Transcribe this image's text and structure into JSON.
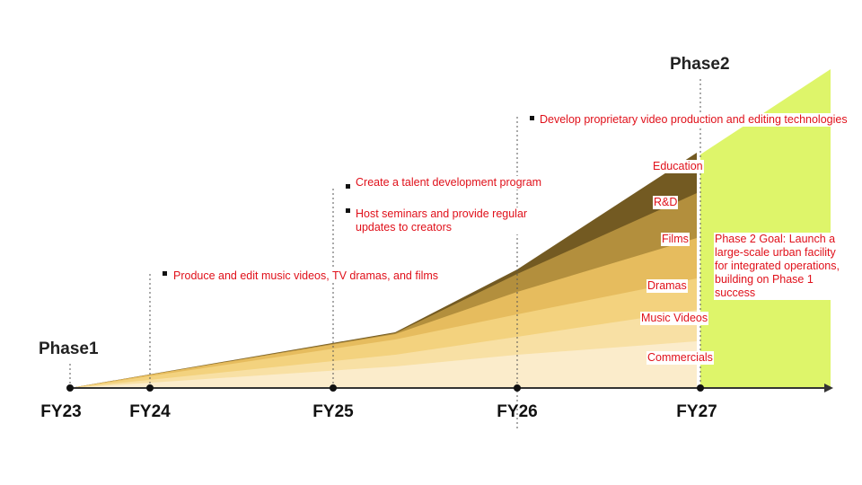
{
  "phases": {
    "phase1": "Phase1",
    "phase2": "Phase2"
  },
  "timeline": [
    "FY23",
    "FY24",
    "FY25",
    "FY26",
    "FY27"
  ],
  "milestones": {
    "fy24": "Produce and edit music videos, TV dramas, and films",
    "fy25_1": "Create a talent development program",
    "fy25_2": "Host seminars and provide regular updates to creators",
    "fy26": "Develop proprietary video production and editing technologies"
  },
  "layers": [
    "Education",
    "R&D",
    "Films",
    "Dramas",
    "Music Videos",
    "Commercials"
  ],
  "phase2_goal": "Phase 2 Goal: Launch a large-scale urban facility for integrated operations, building on Phase 1 success",
  "colors": {
    "commercials": "#fbeccb",
    "music_videos": "#f8e0a4",
    "dramas": "#f3d27e",
    "films": "#e6bc5e",
    "rd": "#b38f3d",
    "education": "#735a22",
    "phase2_area": "#def56a",
    "note_text": "#e0101a",
    "axis": "#333333"
  }
}
